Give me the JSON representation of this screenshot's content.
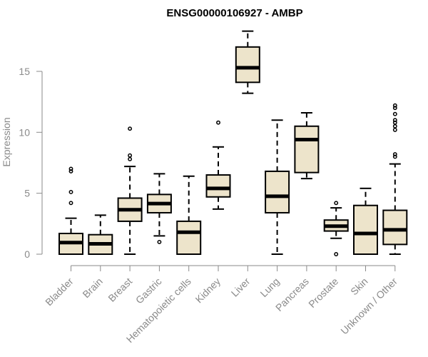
{
  "chart_data": {
    "type": "boxplot",
    "title": "ENSG00000106927 - AMBP",
    "xlabel": "",
    "ylabel": "Expression",
    "ylim": [
      0,
      18.5
    ],
    "yticks": [
      0,
      5,
      10,
      15
    ],
    "colors": {
      "box_fill": "#ede4cb",
      "stroke": "#000000",
      "axis": "#8a8a8a"
    },
    "categories": [
      "Bladder",
      "Brain",
      "Breast",
      "Gastric",
      "Hematopoietic cells",
      "Kidney",
      "Liver",
      "Lung",
      "Pancreas",
      "Prostate",
      "Skin",
      "Unknown / Other"
    ],
    "series": [
      {
        "category": "Bladder",
        "whisker_low": 0,
        "q1": 0,
        "median": 0.95,
        "q3": 1.7,
        "whisker_high": 2.95,
        "outliers": [
          4.2,
          5.1,
          6.8,
          7.0
        ]
      },
      {
        "category": "Brain",
        "whisker_low": 0,
        "q1": 0,
        "median": 0.85,
        "q3": 1.6,
        "whisker_high": 3.2,
        "outliers": []
      },
      {
        "category": "Breast",
        "whisker_low": 0,
        "q1": 2.7,
        "median": 3.65,
        "q3": 4.6,
        "whisker_high": 7.2,
        "outliers": [
          7.8,
          8.1,
          10.3
        ]
      },
      {
        "category": "Gastric",
        "whisker_low": 1.5,
        "q1": 3.4,
        "median": 4.15,
        "q3": 4.9,
        "whisker_high": 6.6,
        "outliers": [
          1.0
        ]
      },
      {
        "category": "Hematopoietic cells",
        "whisker_low": 0,
        "q1": 0,
        "median": 1.8,
        "q3": 2.7,
        "whisker_high": 6.4,
        "outliers": []
      },
      {
        "category": "Kidney",
        "whisker_low": 3.7,
        "q1": 4.7,
        "median": 5.4,
        "q3": 6.5,
        "whisker_high": 8.8,
        "outliers": [
          10.8
        ]
      },
      {
        "category": "Liver",
        "whisker_low": 13.2,
        "q1": 14.1,
        "median": 15.3,
        "q3": 17.0,
        "whisker_high": 18.3,
        "outliers": []
      },
      {
        "category": "Lung",
        "whisker_low": 0,
        "q1": 3.4,
        "median": 4.75,
        "q3": 6.8,
        "whisker_high": 11.0,
        "outliers": []
      },
      {
        "category": "Pancreas",
        "whisker_low": 6.2,
        "q1": 6.7,
        "median": 9.4,
        "q3": 10.5,
        "whisker_high": 11.6,
        "outliers": []
      },
      {
        "category": "Prostate",
        "whisker_low": 1.3,
        "q1": 1.9,
        "median": 2.3,
        "q3": 2.8,
        "whisker_high": 3.8,
        "outliers": [
          0.0,
          4.2
        ]
      },
      {
        "category": "Skin",
        "whisker_low": 0,
        "q1": 0,
        "median": 1.7,
        "q3": 4.0,
        "whisker_high": 5.4,
        "outliers": []
      },
      {
        "category": "Unknown / Other",
        "whisker_low": 0,
        "q1": 0.8,
        "median": 2.0,
        "q3": 3.6,
        "whisker_high": 7.4,
        "outliers": [
          8.0,
          8.2,
          10.2,
          10.5,
          10.8,
          11.0,
          11.5,
          12.0,
          12.2
        ]
      }
    ]
  }
}
